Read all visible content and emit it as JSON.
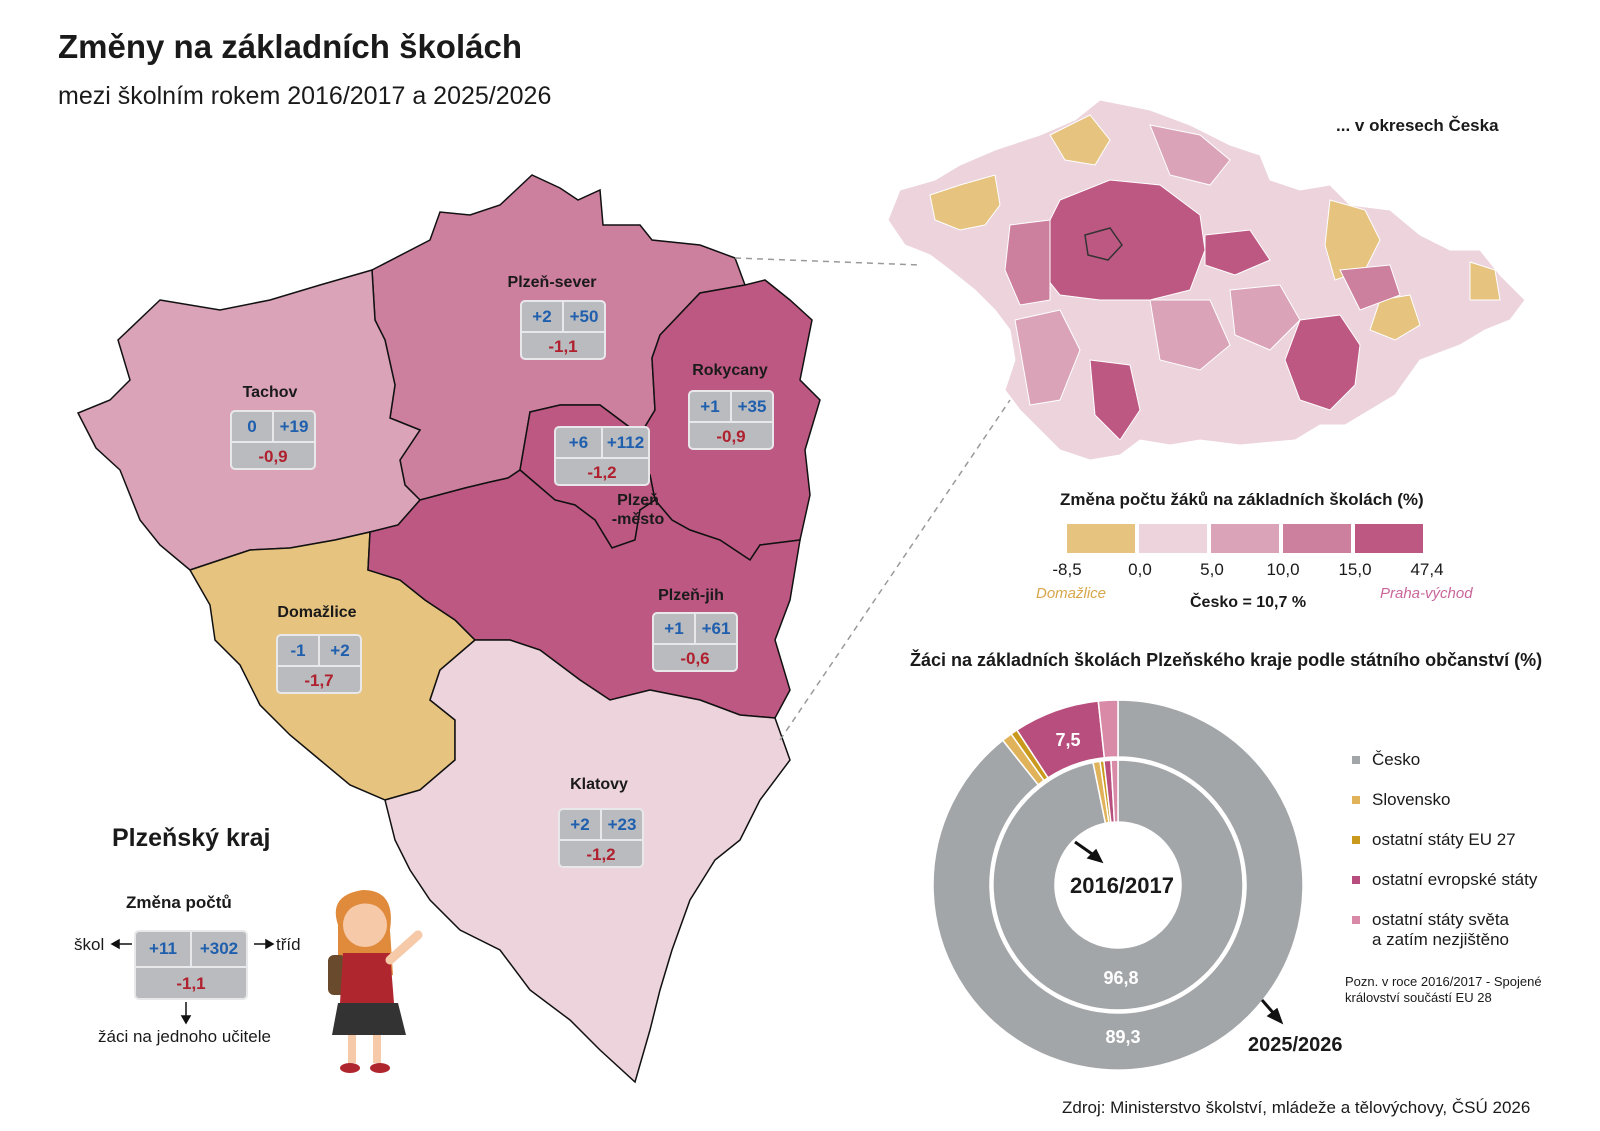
{
  "header": {
    "title": "Změny na základních školách",
    "subtitle": "mezi školním rokem 2016/2017 a 2025/2026"
  },
  "colors": {
    "scale": [
      "#e6c37f",
      "#ecd3dc",
      "#daa3b8",
      "#cd7f9e",
      "#bd5882"
    ],
    "border": "#111111",
    "stat_box": "#b9bbbe",
    "positive": "#1f5fae",
    "negative": "#b0202e"
  },
  "region_map": {
    "region_name": "Plzeňský kraj",
    "districts": [
      {
        "name": "Plzeň-sever",
        "schools": "+2",
        "classes": "+50",
        "pupils_per_teacher": "-1,1",
        "class": 3
      },
      {
        "name": "Tachov",
        "schools": "0",
        "classes": "+19",
        "pupils_per_teacher": "-0,9",
        "class": 2
      },
      {
        "name": "Rokycany",
        "schools": "+1",
        "classes": "+35",
        "pupils_per_teacher": "-0,9",
        "class": 4
      },
      {
        "name": "Plzeň",
        "name2": "-město",
        "schools": "+6",
        "classes": "+112",
        "pupils_per_teacher": "-1,2",
        "class": 4
      },
      {
        "name": "Domažlice",
        "schools": "-1",
        "classes": "+2",
        "pupils_per_teacher": "-1,7",
        "class": 0
      },
      {
        "name": "Plzeň-jih",
        "schools": "+1",
        "classes": "+61",
        "pupils_per_teacher": "-0,6",
        "class": 4
      },
      {
        "name": "Klatovy",
        "schools": "+2",
        "classes": "+23",
        "pupils_per_teacher": "-1,2",
        "class": 1
      }
    ],
    "legend": {
      "caption": "Změna počtů",
      "schools": "+11",
      "classes": "+302",
      "pupils_per_teacher": "-1,1",
      "schools_label": "škol",
      "classes_label": "tříd",
      "pupils_label": "žáci na jednoho učitele"
    }
  },
  "czech_map": {
    "title": "... v okresech Česka",
    "scale_title": "Změna počtu žáků na základních školách (%)",
    "scale_ticks": [
      "-8,5",
      "0,0",
      "5,0",
      "10,0",
      "15,0",
      "47,4"
    ],
    "min_district": "Domažlice",
    "max_district": "Praha-východ",
    "country_value": "Česko = 10,7 %"
  },
  "donut": {
    "title": "Žáci na základních školách Plzeňského kraje podle státního občanství (%)",
    "inner_year": "2016/2017",
    "outer_year": "2025/2026",
    "inner_label": "96,8",
    "outer_label": "89,3",
    "outer_highlight_label": "7,5",
    "legend": [
      {
        "label": "Česko",
        "color": "#a2a6a8"
      },
      {
        "label": "Slovensko",
        "color": "#e0b25a"
      },
      {
        "label": "ostatní státy EU 27",
        "color": "#c99a1e"
      },
      {
        "label": "ostatní evropské státy",
        "color": "#b84e7d"
      },
      {
        "label": "ostatní státy světa",
        "label2": "a zatím nezjištěno",
        "color": "#d98aa6"
      }
    ],
    "note": "Pozn. v roce 2016/2017 - Spojené království součástí EU 28"
  },
  "chart_data": {
    "type": "pie",
    "title": "Žáci na základních školách Plzeňského kraje podle státního občanství (%)",
    "categories": [
      "Česko",
      "Slovensko",
      "ostatní státy EU 27",
      "ostatní evropské státy",
      "ostatní státy světa a zatím nezjištěno"
    ],
    "series": [
      {
        "name": "2016/2017",
        "values": [
          96.8,
          0.9,
          0.5,
          0.9,
          0.9
        ]
      },
      {
        "name": "2025/2026",
        "values": [
          89.3,
          0.9,
          0.6,
          7.5,
          1.7
        ]
      }
    ]
  },
  "footer": {
    "source": "Zdroj: Ministerstvo školství, mládeže a tělovýchovy, ČSÚ 2026"
  }
}
